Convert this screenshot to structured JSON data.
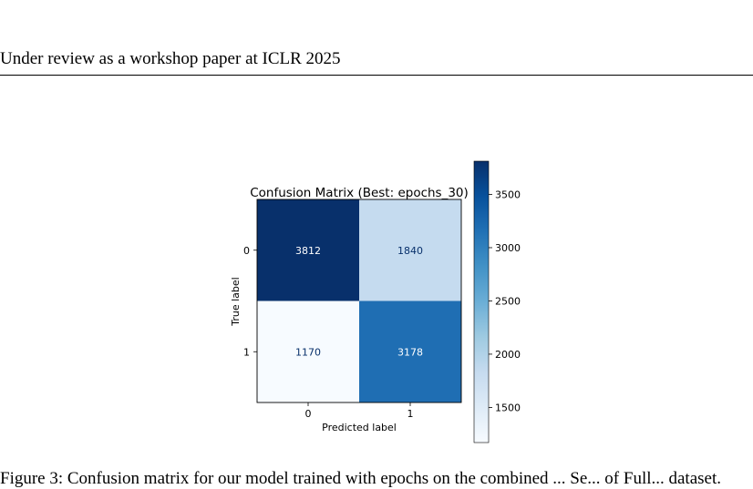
{
  "header": {
    "running_title": "Under review as a workshop paper at ICLR 2025"
  },
  "chart_data": {
    "type": "heatmap",
    "title": "Confusion Matrix (Best: epochs_30)",
    "xlabel": "Predicted label",
    "ylabel": "True label",
    "x_ticks": [
      "0",
      "1"
    ],
    "y_ticks": [
      "0",
      "1"
    ],
    "matrix": [
      [
        3812,
        1840
      ],
      [
        1170,
        3178
      ]
    ],
    "colormap": "Blues",
    "colorbar": {
      "ticks": [
        1500,
        2000,
        2500,
        3000,
        3500
      ],
      "tick_labels": [
        "1500",
        "2000",
        "2500",
        "3000",
        "3500"
      ],
      "range": [
        1170,
        3812
      ]
    }
  },
  "caption": {
    "text": "Figure 3: Confusion matrix for our model trained with epochs on the combined ... Se... of Full... dataset."
  }
}
